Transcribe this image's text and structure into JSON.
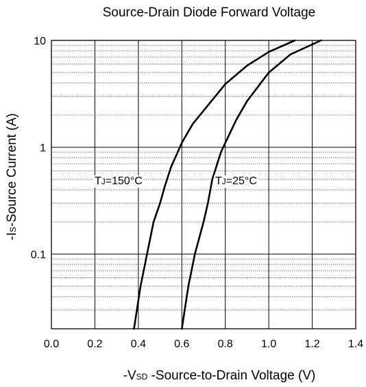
{
  "chart_data": {
    "type": "line",
    "title": "Source-Drain Diode Forward Voltage",
    "ylabel_prefix": "-I",
    "ylabel_sub": "S",
    "ylabel_rest": "-Source Current (A)",
    "xlabel_prefix": "-V",
    "xlabel_sub": "SD",
    "xlabel_rest": " -Source-to-Drain Voltage (V)",
    "x_scale": "linear",
    "y_scale": "log",
    "xlim": [
      0.0,
      1.4
    ],
    "ylim": [
      0.02,
      10
    ],
    "xticks": [
      "0.0",
      "0.2",
      "0.4",
      "0.6",
      "0.8",
      "1.0",
      "1.2",
      "1.4"
    ],
    "yticks": [
      "0.1",
      "1",
      "10"
    ],
    "grid": true,
    "series": [
      {
        "label_prefix": "T",
        "label_sub": "J",
        "label_rest": "=150°C",
        "points": [
          [
            0.38,
            0.02
          ],
          [
            0.41,
            0.05
          ],
          [
            0.44,
            0.1
          ],
          [
            0.47,
            0.2
          ],
          [
            0.5,
            0.3
          ],
          [
            0.52,
            0.42
          ],
          [
            0.55,
            0.65
          ],
          [
            0.6,
            1.1
          ],
          [
            0.65,
            1.65
          ],
          [
            0.7,
            2.2
          ],
          [
            0.8,
            3.9
          ],
          [
            0.9,
            5.8
          ],
          [
            1.0,
            7.8
          ],
          [
            1.12,
            10.0
          ]
        ]
      },
      {
        "label_prefix": "T",
        "label_sub": "J",
        "label_rest": "=25°C",
        "points": [
          [
            0.6,
            0.02
          ],
          [
            0.63,
            0.05
          ],
          [
            0.66,
            0.1
          ],
          [
            0.7,
            0.2
          ],
          [
            0.72,
            0.3
          ],
          [
            0.74,
            0.5
          ],
          [
            0.78,
            0.9
          ],
          [
            0.8,
            1.1
          ],
          [
            0.85,
            1.8
          ],
          [
            0.9,
            2.7
          ],
          [
            1.0,
            5.0
          ],
          [
            1.1,
            7.4
          ],
          [
            1.24,
            10.0
          ]
        ]
      }
    ]
  }
}
